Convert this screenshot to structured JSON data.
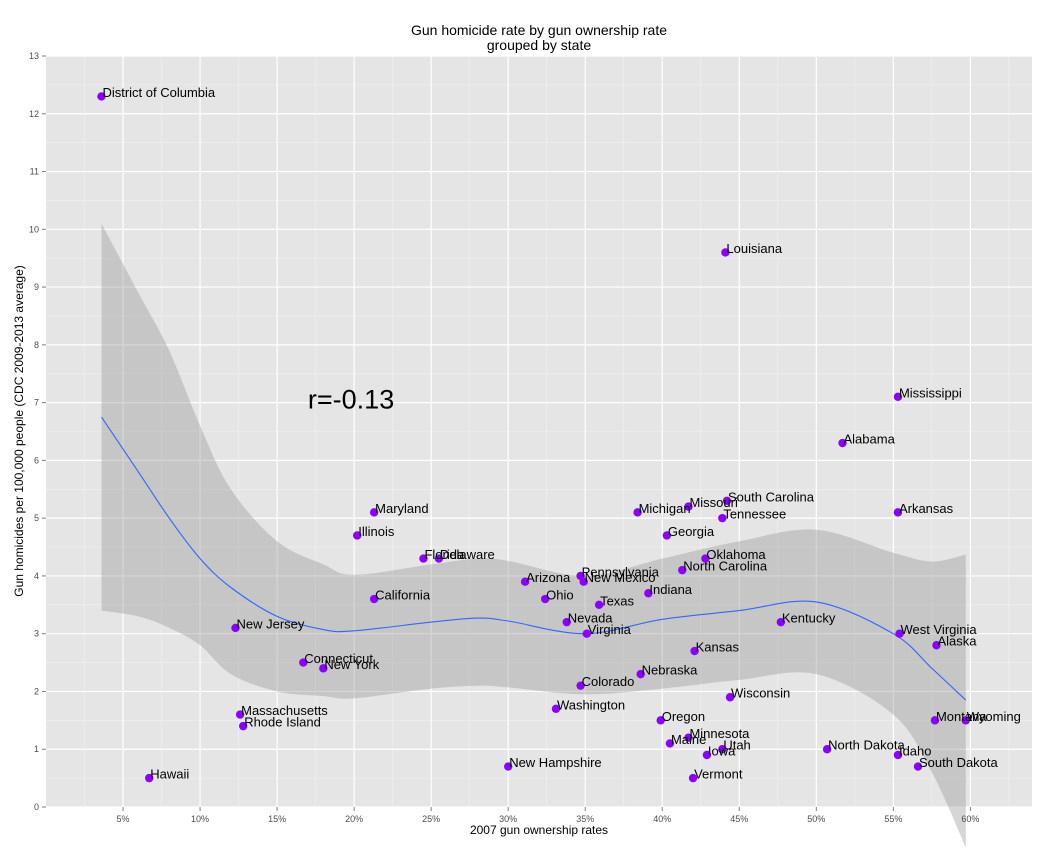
{
  "chart_data": {
    "type": "scatter",
    "title": "Gun homicide rate by gun ownership rate",
    "subtitle": "grouped by state",
    "xlabel": "2007 gun ownership rates",
    "ylabel": "Gun homicides per 100,000 people (CDC 2009-2013 average)",
    "xlim": [
      0.0,
      0.64
    ],
    "ylim": [
      0,
      13
    ],
    "x_ticks": [
      {
        "value": 0.05,
        "label": "5%"
      },
      {
        "value": 0.1,
        "label": "10%"
      },
      {
        "value": 0.15,
        "label": "15%"
      },
      {
        "value": 0.2,
        "label": "20%"
      },
      {
        "value": 0.25,
        "label": "25%"
      },
      {
        "value": 0.3,
        "label": "30%"
      },
      {
        "value": 0.35,
        "label": "35%"
      },
      {
        "value": 0.4,
        "label": "40%"
      },
      {
        "value": 0.45,
        "label": "45%"
      },
      {
        "value": 0.5,
        "label": "50%"
      },
      {
        "value": 0.55,
        "label": "55%"
      },
      {
        "value": 0.6,
        "label": "60%"
      }
    ],
    "y_ticks": [
      {
        "value": 0,
        "label": "0"
      },
      {
        "value": 1,
        "label": "1"
      },
      {
        "value": 2,
        "label": "2"
      },
      {
        "value": 3,
        "label": "3"
      },
      {
        "value": 4,
        "label": "4"
      },
      {
        "value": 5,
        "label": "5"
      },
      {
        "value": 6,
        "label": "6"
      },
      {
        "value": 7,
        "label": "7"
      },
      {
        "value": 8,
        "label": "8"
      },
      {
        "value": 9,
        "label": "9"
      },
      {
        "value": 10,
        "label": "10"
      },
      {
        "value": 11,
        "label": "11"
      },
      {
        "value": 12,
        "label": "12"
      },
      {
        "value": 13,
        "label": "13"
      }
    ],
    "annotation": {
      "text": "r=-0.13",
      "x": 0.17,
      "y": 6.9
    },
    "grid": true,
    "point_color": "#8b00ff",
    "fit_color": "#3366ff",
    "band_color": "#999999",
    "panel_color": "#e5e5e5",
    "points": [
      {
        "label": "District of Columbia",
        "x": 0.036,
        "y": 12.3
      },
      {
        "label": "Louisiana",
        "x": 0.441,
        "y": 9.6
      },
      {
        "label": "Mississippi",
        "x": 0.553,
        "y": 7.1
      },
      {
        "label": "Alabama",
        "x": 0.517,
        "y": 6.3
      },
      {
        "label": "Arkansas",
        "x": 0.553,
        "y": 5.1
      },
      {
        "label": "South Carolina",
        "x": 0.442,
        "y": 5.3
      },
      {
        "label": "Missouri",
        "x": 0.417,
        "y": 5.2
      },
      {
        "label": "Tennessee",
        "x": 0.439,
        "y": 5.0
      },
      {
        "label": "Michigan",
        "x": 0.384,
        "y": 5.1
      },
      {
        "label": "Maryland",
        "x": 0.213,
        "y": 5.1
      },
      {
        "label": "Illinois",
        "x": 0.202,
        "y": 4.7
      },
      {
        "label": "Georgia",
        "x": 0.403,
        "y": 4.7
      },
      {
        "label": "Florida",
        "x": 0.245,
        "y": 4.3
      },
      {
        "label": "Delaware",
        "x": 0.255,
        "y": 4.3
      },
      {
        "label": "Oklahoma",
        "x": 0.428,
        "y": 4.3
      },
      {
        "label": "North Carolina",
        "x": 0.413,
        "y": 4.1
      },
      {
        "label": "Pennsylvania",
        "x": 0.347,
        "y": 4.0
      },
      {
        "label": "New Mexico",
        "x": 0.349,
        "y": 3.9
      },
      {
        "label": "Arizona",
        "x": 0.311,
        "y": 3.9
      },
      {
        "label": "Indiana",
        "x": 0.391,
        "y": 3.7
      },
      {
        "label": "Ohio",
        "x": 0.324,
        "y": 3.6
      },
      {
        "label": "California",
        "x": 0.213,
        "y": 3.6
      },
      {
        "label": "Texas",
        "x": 0.359,
        "y": 3.5
      },
      {
        "label": "Nevada",
        "x": 0.338,
        "y": 3.2
      },
      {
        "label": "Kentucky",
        "x": 0.477,
        "y": 3.2
      },
      {
        "label": "New Jersey",
        "x": 0.123,
        "y": 3.1
      },
      {
        "label": "Virginia",
        "x": 0.351,
        "y": 3.0
      },
      {
        "label": "West Virginia",
        "x": 0.554,
        "y": 3.0
      },
      {
        "label": "Alaska",
        "x": 0.578,
        "y": 2.8
      },
      {
        "label": "Kansas",
        "x": 0.421,
        "y": 2.7
      },
      {
        "label": "Connecticut",
        "x": 0.167,
        "y": 2.5
      },
      {
        "label": "New York",
        "x": 0.18,
        "y": 2.4
      },
      {
        "label": "Nebraska",
        "x": 0.386,
        "y": 2.3
      },
      {
        "label": "Colorado",
        "x": 0.347,
        "y": 2.1
      },
      {
        "label": "Wisconsin",
        "x": 0.444,
        "y": 1.9
      },
      {
        "label": "Washington",
        "x": 0.331,
        "y": 1.7
      },
      {
        "label": "Massachusetts",
        "x": 0.126,
        "y": 1.6
      },
      {
        "label": "Oregon",
        "x": 0.399,
        "y": 1.5
      },
      {
        "label": "Montana",
        "x": 0.577,
        "y": 1.5
      },
      {
        "label": "Wyoming",
        "x": 0.597,
        "y": 1.5
      },
      {
        "label": "Rhode Island",
        "x": 0.128,
        "y": 1.4
      },
      {
        "label": "Minnesota",
        "x": 0.417,
        "y": 1.2
      },
      {
        "label": "Maine",
        "x": 0.405,
        "y": 1.1
      },
      {
        "label": "Utah",
        "x": 0.439,
        "y": 1.0
      },
      {
        "label": "North Dakota",
        "x": 0.507,
        "y": 1.0
      },
      {
        "label": "Iowa",
        "x": 0.429,
        "y": 0.9
      },
      {
        "label": "Idaho",
        "x": 0.553,
        "y": 0.9
      },
      {
        "label": "New Hampshire",
        "x": 0.3,
        "y": 0.7
      },
      {
        "label": "South Dakota",
        "x": 0.566,
        "y": 0.7
      },
      {
        "label": "Hawaii",
        "x": 0.067,
        "y": 0.5
      },
      {
        "label": "Vermont",
        "x": 0.42,
        "y": 0.5
      }
    ],
    "fit": {
      "x": [
        0.036,
        0.06,
        0.08,
        0.1,
        0.12,
        0.15,
        0.18,
        0.2,
        0.25,
        0.28,
        0.3,
        0.35,
        0.4,
        0.45,
        0.5,
        0.55,
        0.575,
        0.597
      ],
      "y": [
        6.75,
        5.8,
        5.0,
        4.3,
        3.8,
        3.3,
        3.07,
        3.05,
        3.2,
        3.27,
        3.22,
        3.0,
        3.25,
        3.4,
        3.55,
        3.0,
        2.4,
        1.85
      ],
      "upper": [
        10.1,
        8.9,
        7.9,
        6.6,
        5.5,
        4.6,
        4.2,
        4.02,
        4.2,
        4.3,
        4.26,
        4.0,
        4.3,
        4.6,
        4.8,
        4.4,
        4.25,
        4.37
      ],
      "lower": [
        3.4,
        3.3,
        3.1,
        2.8,
        2.3,
        2.0,
        1.92,
        1.88,
        2.05,
        2.1,
        2.07,
        1.95,
        2.05,
        2.2,
        2.3,
        1.6,
        0.6,
        -0.7
      ]
    }
  }
}
